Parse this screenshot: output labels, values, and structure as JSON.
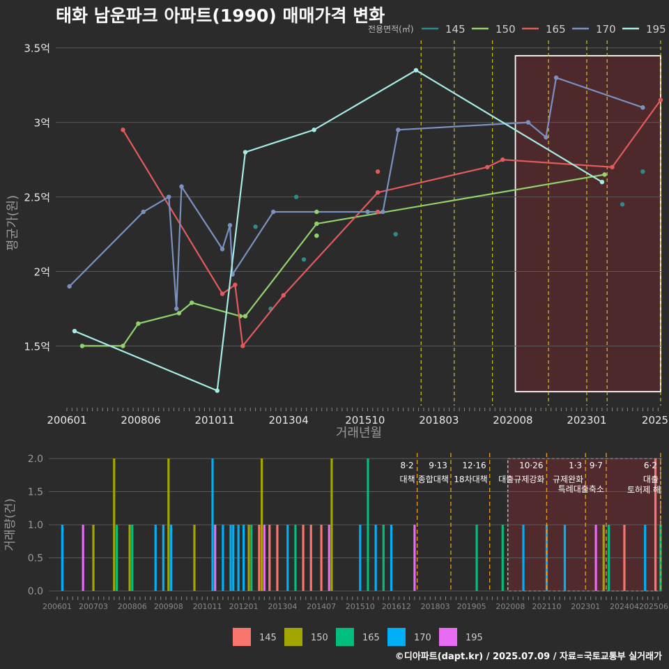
{
  "title": "태화 남운파크 아파트(1990) 매매가격 변화",
  "credit": "©디아파트(dapt.kr) / 2025.07.09 / 자료=국토교통부 실거래가",
  "colors": {
    "price": {
      "145": "#2e8b8b",
      "150": "#92d36e",
      "165": "#e35b5b",
      "170": "#7b92c0",
      "195": "#a8ece6"
    },
    "volume": {
      "145": "#f8766d",
      "150": "#a3a500",
      "165": "#00bf7d",
      "170": "#00b0f6",
      "195": "#e76bf3"
    }
  },
  "chart_data": [
    {
      "type": "line",
      "title": "태화 남운파크 아파트(1990) 매매가격 변화",
      "xlabel": "거래년월",
      "ylabel": "평균가(원)",
      "ylim": [
        1.1,
        3.55
      ],
      "y_unit": "억",
      "yticks": [
        1.5,
        2,
        2.5,
        3,
        3.5
      ],
      "ytick_labels": [
        "1.5억",
        "2억",
        "2.5억",
        "3억",
        "3.5억"
      ],
      "xticks": [
        "200601",
        "200806",
        "201011",
        "201304",
        "201510",
        "201803",
        "202008",
        "202301",
        "2025"
      ],
      "legend_title": "전용면적(㎡)",
      "legend_position": "top-right",
      "highlight_range": [
        "2020-09",
        "2025-06"
      ],
      "policy_lines": [
        "2017-08",
        "2018-09",
        "2019-12",
        "2021-10",
        "2023-01",
        "2023-09",
        "2025-06"
      ],
      "series": [
        {
          "name": "145",
          "line": false,
          "points": [
            [
              "2012-03",
              2.3
            ],
            [
              "2013-07",
              2.5
            ],
            [
              "2013-10",
              2.08
            ],
            [
              "2012-09",
              1.75
            ],
            [
              "2016-10",
              2.25
            ],
            [
              "2024-03",
              2.45
            ]
          ]
        },
        {
          "name": "150",
          "line": true,
          "points": [
            [
              "2006-07",
              1.5
            ],
            [
              "2007-11",
              1.5
            ],
            [
              "2008-05",
              1.65
            ],
            [
              "2009-09",
              1.72
            ],
            [
              "2010-02",
              1.79
            ],
            [
              "2011-09",
              1.7
            ],
            [
              "2011-11",
              1.7
            ],
            [
              "2014-03",
              2.32
            ],
            [
              "2023-08",
              2.65
            ]
          ]
        },
        {
          "name": "165",
          "line": true,
          "points": [
            [
              "2007-11",
              2.95
            ],
            [
              "2011-02",
              1.85
            ],
            [
              "2011-07",
              1.91
            ],
            [
              "2011-10",
              1.5
            ],
            [
              "2013-02",
              1.84
            ],
            [
              "2016-03",
              2.53
            ],
            [
              "2019-10",
              2.7
            ],
            [
              "2020-04",
              2.75
            ],
            [
              "2023-11",
              2.7
            ],
            [
              "2025-06",
              3.15
            ]
          ]
        },
        {
          "name": "170",
          "line": true,
          "points": [
            [
              "2006-02",
              1.9
            ],
            [
              "2008-07",
              2.4
            ],
            [
              "2009-05",
              2.5
            ],
            [
              "2009-08",
              1.75
            ],
            [
              "2009-10",
              2.57
            ],
            [
              "2011-02",
              2.15
            ],
            [
              "2011-05",
              2.31
            ],
            [
              "2011-06",
              1.98
            ],
            [
              "2012-10",
              2.4
            ],
            [
              "2015-11",
              2.4
            ],
            [
              "2016-05",
              2.4
            ],
            [
              "2016-11",
              2.95
            ],
            [
              "2021-02",
              3.0
            ],
            [
              "2021-09",
              2.9
            ],
            [
              "2022-01",
              3.3
            ],
            [
              "2024-11",
              3.1
            ]
          ]
        },
        {
          "name": "195",
          "line": true,
          "points": [
            [
              "2006-04",
              1.6
            ],
            [
              "2010-12",
              1.2
            ],
            [
              "2011-11",
              2.8
            ],
            [
              "2014-02",
              2.95
            ],
            [
              "2017-06",
              3.35
            ],
            [
              "2023-07",
              2.6
            ]
          ]
        }
      ],
      "extra_points": [
        {
          "series": "150",
          "x": "2014-03",
          "y": 2.24
        },
        {
          "series": "150",
          "x": "2014-03",
          "y": 2.4
        },
        {
          "series": "165",
          "x": "2016-03",
          "y": 2.67
        },
        {
          "series": "165",
          "x": "2016-03",
          "y": 2.4
        },
        {
          "series": "145",
          "x": "2024-11",
          "y": 2.67
        }
      ]
    },
    {
      "type": "bar",
      "ylabel": "거래량(건)",
      "ylim": [
        0,
        2
      ],
      "yticks": [
        0.0,
        0.5,
        1.0,
        1.5,
        2.0
      ],
      "ytick_labels": [
        "0.0",
        "0.5",
        "1.0",
        "1.5",
        "2.0"
      ],
      "xticks": [
        "200601",
        "200703",
        "200806",
        "200908",
        "201011",
        "201201",
        "201304",
        "201407",
        "201510",
        "201612",
        "201803",
        "201905",
        "202008",
        "202110",
        "202301",
        "202404",
        "202506"
      ],
      "legend_position": "bottom",
      "policies": [
        {
          "x": "2017-08",
          "date": "8·2",
          "label": "대책"
        },
        {
          "x": "2018-09",
          "date": "9·13",
          "label": "종합대책"
        },
        {
          "x": "2019-12",
          "date": "12·16",
          "label": "18차대책"
        },
        {
          "x": "2021-10",
          "date": "10·26",
          "label": "대출규제강화"
        },
        {
          "x": "2023-01",
          "date": "1·3",
          "label": "규제완화"
        },
        {
          "x": "2023-09",
          "date": "9·7",
          "label": "특례대출축소"
        },
        {
          "x": "2025-06",
          "date": "6·2",
          "label": "대출"
        }
      ],
      "highlight_note": "토허제 해",
      "bars": [
        {
          "x": "2006-03",
          "series": "170",
          "v": 1
        },
        {
          "x": "2006-11",
          "series": "195",
          "v": 1
        },
        {
          "x": "2007-03",
          "series": "150",
          "v": 1
        },
        {
          "x": "2007-11",
          "series": "150",
          "v": 2
        },
        {
          "x": "2007-12",
          "series": "165",
          "v": 1
        },
        {
          "x": "2008-05",
          "series": "150",
          "v": 1
        },
        {
          "x": "2008-06",
          "series": "165",
          "v": 1
        },
        {
          "x": "2009-03",
          "series": "170",
          "v": 1
        },
        {
          "x": "2009-06",
          "series": "170",
          "v": 1
        },
        {
          "x": "2009-08",
          "series": "150",
          "v": 2
        },
        {
          "x": "2009-09",
          "series": "170",
          "v": 1
        },
        {
          "x": "2010-06",
          "series": "150",
          "v": 1
        },
        {
          "x": "2011-01",
          "series": "170",
          "v": 2
        },
        {
          "x": "2011-02",
          "series": "195",
          "v": 1
        },
        {
          "x": "2011-05",
          "series": "170",
          "v": 1
        },
        {
          "x": "2011-08",
          "series": "170",
          "v": 1
        },
        {
          "x": "2011-09",
          "series": "170",
          "v": 1
        },
        {
          "x": "2011-11",
          "series": "170",
          "v": 1
        },
        {
          "x": "2012-01",
          "series": "170",
          "v": 1
        },
        {
          "x": "2012-03",
          "series": "150",
          "v": 1
        },
        {
          "x": "2012-04",
          "series": "165",
          "v": 1
        },
        {
          "x": "2012-07",
          "series": "145",
          "v": 1
        },
        {
          "x": "2012-08",
          "series": "150",
          "v": 2
        },
        {
          "x": "2012-09",
          "series": "195",
          "v": 1
        },
        {
          "x": "2012-11",
          "series": "145",
          "v": 1
        },
        {
          "x": "2013-02",
          "series": "145",
          "v": 1
        },
        {
          "x": "2013-06",
          "series": "170",
          "v": 1
        },
        {
          "x": "2013-09",
          "series": "165",
          "v": 1
        },
        {
          "x": "2013-12",
          "series": "145",
          "v": 1
        },
        {
          "x": "2014-03",
          "series": "145",
          "v": 1
        },
        {
          "x": "2014-07",
          "series": "145",
          "v": 1
        },
        {
          "x": "2014-10",
          "series": "195",
          "v": 1
        },
        {
          "x": "2014-11",
          "series": "150",
          "v": 2
        },
        {
          "x": "2015-10",
          "series": "170",
          "v": 1
        },
        {
          "x": "2016-01",
          "series": "165",
          "v": 2
        },
        {
          "x": "2016-04",
          "series": "170",
          "v": 1
        },
        {
          "x": "2016-07",
          "series": "165",
          "v": 1
        },
        {
          "x": "2016-10",
          "series": "170",
          "v": 1
        },
        {
          "x": "2017-07",
          "series": "195",
          "v": 1
        },
        {
          "x": "2019-07",
          "series": "165",
          "v": 1
        },
        {
          "x": "2020-05",
          "series": "165",
          "v": 1
        },
        {
          "x": "2021-01",
          "series": "170",
          "v": 1
        },
        {
          "x": "2021-10",
          "series": "170",
          "v": 1
        },
        {
          "x": "2022-05",
          "series": "170",
          "v": 1
        },
        {
          "x": "2023-05",
          "series": "195",
          "v": 1
        },
        {
          "x": "2023-08",
          "series": "150",
          "v": 1
        },
        {
          "x": "2023-10",
          "series": "165",
          "v": 1
        },
        {
          "x": "2024-04",
          "series": "145",
          "v": 1
        },
        {
          "x": "2024-12",
          "series": "170",
          "v": 1
        },
        {
          "x": "2025-04",
          "series": "145",
          "v": 2
        },
        {
          "x": "2025-06",
          "series": "165",
          "v": 1
        }
      ]
    }
  ],
  "legend_bottom": [
    "145",
    "150",
    "165",
    "170",
    "195"
  ]
}
